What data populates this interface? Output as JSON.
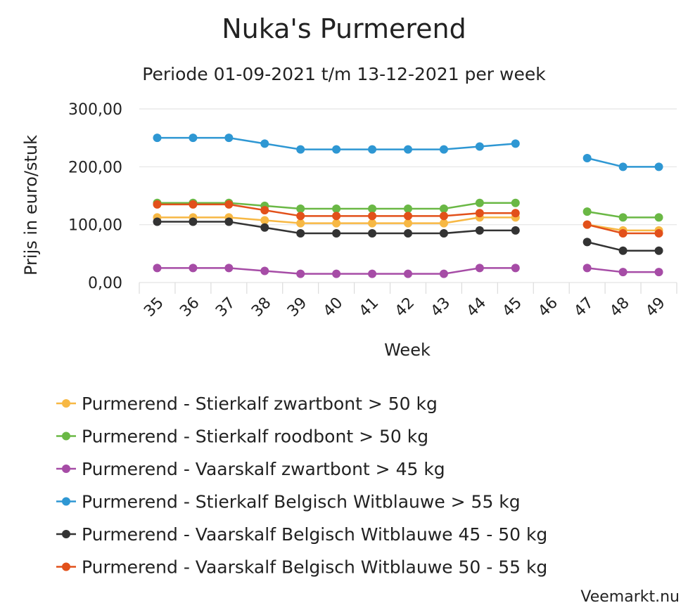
{
  "chart_data": {
    "type": "line",
    "title": "Nuka's Purmerend",
    "subtitle": "Periode 01-09-2021 t/m 13-12-2021 per week",
    "xlabel": "Week",
    "ylabel": "Prijs in euro/stuk",
    "categories": [
      "35",
      "36",
      "37",
      "38",
      "39",
      "40",
      "41",
      "42",
      "43",
      "44",
      "45",
      "46",
      "47",
      "48",
      "49"
    ],
    "ylim": [
      0,
      300
    ],
    "yticks": [
      0,
      100,
      200,
      300
    ],
    "ytick_labels": [
      "0,00",
      "100,00",
      "200,00",
      "300,00"
    ],
    "grid": true,
    "legend_position": "bottom",
    "series": [
      {
        "name": "Purmerend - Stierkalf zwartbont > 50 kg",
        "color": "#f7b844",
        "values": [
          112.5,
          112.5,
          112.5,
          107.5,
          102.5,
          102.5,
          102.5,
          102.5,
          102.5,
          112.5,
          112.5,
          null,
          100,
          90,
          90
        ]
      },
      {
        "name": "Purmerend - Stierkalf roodbont > 50 kg",
        "color": "#6ab845",
        "values": [
          137.5,
          137.5,
          137.5,
          132.5,
          127.5,
          127.5,
          127.5,
          127.5,
          127.5,
          137.5,
          137.5,
          null,
          122.5,
          112.5,
          112.5
        ]
      },
      {
        "name": "Purmerend - Vaarskalf zwartbont > 45 kg",
        "color": "#a64ca6",
        "values": [
          25,
          25,
          25,
          20,
          15,
          15,
          15,
          15,
          15,
          25,
          25,
          null,
          25,
          18,
          18
        ]
      },
      {
        "name": "Purmerend - Stierkalf Belgisch Witblauwe > 55 kg",
        "color": "#2e97d3",
        "values": [
          250,
          250,
          250,
          240,
          230,
          230,
          230,
          230,
          230,
          235,
          240,
          null,
          215,
          200,
          200
        ]
      },
      {
        "name": "Purmerend - Vaarskalf Belgisch Witblauwe 45 - 50 kg",
        "color": "#333333",
        "values": [
          105,
          105,
          105,
          95,
          85,
          85,
          85,
          85,
          85,
          90,
          90,
          null,
          70,
          55,
          55
        ]
      },
      {
        "name": "Purmerend - Vaarskalf Belgisch Witblauwe 50 - 55 kg",
        "color": "#e2501a",
        "values": [
          135,
          135,
          135,
          125,
          115,
          115,
          115,
          115,
          115,
          120,
          120,
          null,
          100,
          85,
          85
        ]
      }
    ]
  },
  "footer": {
    "source": "Veemarkt.nu"
  }
}
